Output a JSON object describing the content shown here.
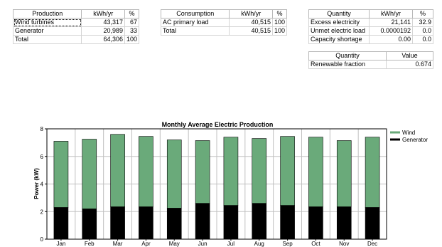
{
  "production_table": {
    "headers": [
      "Production",
      "kWh/yr",
      "%"
    ],
    "rows": [
      {
        "label": "Wind turbines",
        "kwh": "43,317",
        "pct": "67"
      },
      {
        "label": "Generator",
        "kwh": "20,989",
        "pct": "33"
      },
      {
        "label": "Total",
        "kwh": "64,306",
        "pct": "100"
      }
    ]
  },
  "consumption_table": {
    "headers": [
      "Consumption",
      "kWh/yr",
      "%"
    ],
    "rows": [
      {
        "label": "AC primary load",
        "kwh": "40,515",
        "pct": "100"
      },
      {
        "label": "Total",
        "kwh": "40,515",
        "pct": "100"
      }
    ]
  },
  "quantity_table": {
    "headers": [
      "Quantity",
      "kWh/yr",
      "%"
    ],
    "rows": [
      {
        "label": "Excess electricity",
        "kwh": "21,141",
        "pct": "32.9"
      },
      {
        "label": "Unmet electric load",
        "kwh": "0.0000192",
        "pct": "0.0"
      },
      {
        "label": "Capacity shortage",
        "kwh": "0.00",
        "pct": "0.0"
      }
    ]
  },
  "renewable_table": {
    "headers": [
      "Quantity",
      "Value"
    ],
    "rows": [
      {
        "label": "Renewable fraction",
        "value": "0.674"
      }
    ]
  },
  "colors": {
    "wind": "#6aaa7a",
    "generator": "#000000",
    "grid": "#c0c0c0"
  },
  "chart_data": {
    "type": "bar",
    "stacked": true,
    "title": "Monthly Average Electric Production",
    "xlabel": "",
    "ylabel": "Power (kW)",
    "ylim": [
      0,
      8
    ],
    "yticks": [
      "0",
      "2",
      "4",
      "6",
      "8"
    ],
    "grid": true,
    "legend_position": "right",
    "categories": [
      "Jan",
      "Feb",
      "Mar",
      "Apr",
      "May",
      "Jun",
      "Jul",
      "Aug",
      "Sep",
      "Oct",
      "Nov",
      "Dec"
    ],
    "series": [
      {
        "name": "Generator",
        "values": [
          2.3,
          2.2,
          2.35,
          2.35,
          2.25,
          2.6,
          2.45,
          2.6,
          2.45,
          2.35,
          2.35,
          2.3
        ]
      },
      {
        "name": "Wind",
        "values": [
          4.8,
          5.05,
          5.25,
          5.1,
          4.95,
          4.55,
          4.95,
          4.7,
          5.0,
          5.05,
          4.8,
          5.1
        ]
      }
    ],
    "legend": [
      "Wind",
      "Generator"
    ]
  }
}
